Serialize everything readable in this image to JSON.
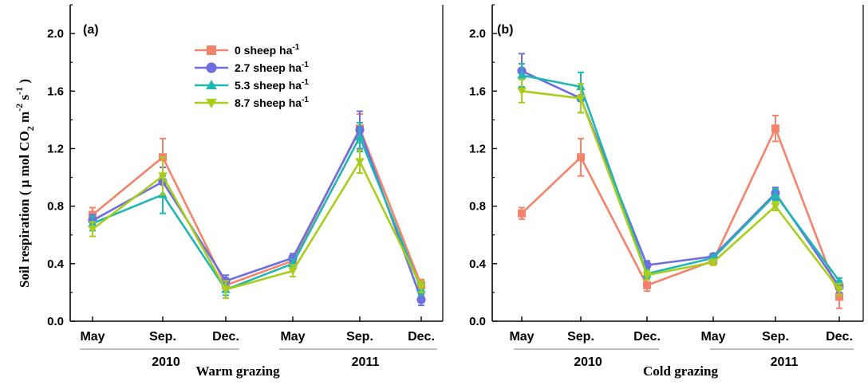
{
  "colors": {
    "s0": "#f5836b",
    "s27": "#6f6ee0",
    "s53": "#1fb7b3",
    "s87": "#a8cd1b",
    "axis": "#000000",
    "group_line": "#7f7f7f"
  },
  "legend": {
    "entries": [
      {
        "name": "0 sheep ha",
        "sup": "-1",
        "marker": "square"
      },
      {
        "name": "2.7 sheep ha",
        "sup": "-1",
        "marker": "circle"
      },
      {
        "name": "5.3  sheep ha",
        "sup": "-1",
        "marker": "triangle-up"
      },
      {
        "name": "8.7  sheep ha",
        "sup": "-1",
        "marker": "triangle-down"
      }
    ]
  },
  "ylabel": {
    "main": "Soil respiration ( μ mol CO",
    "sub2": "2",
    "m": " m",
    "sup2": "-2",
    "s": " s",
    "sup1": "-1",
    "close": " )"
  },
  "chart_data": [
    {
      "type": "line",
      "panel_label": "(a)",
      "xlabel": "Warm grazing",
      "categories": [
        "May",
        "Sep.",
        "Dec.",
        "May",
        "Sep.",
        "Dec."
      ],
      "year_groups": [
        {
          "label": "2010",
          "from": 0,
          "to": 2
        },
        {
          "label": "2011",
          "from": 3,
          "to": 5
        }
      ],
      "ylim": [
        0.0,
        2.2
      ],
      "yticks": [
        0.0,
        0.4,
        0.8,
        1.2,
        1.6,
        2.0
      ],
      "ytick_labels": [
        "0.0",
        "0.4",
        "0.8",
        "1.2",
        "1.6",
        "2.0"
      ],
      "legend_placement": "top-center",
      "series": [
        {
          "name": "0 sheep ha-1",
          "marker": "square",
          "values": [
            0.74,
            1.14,
            0.25,
            0.42,
            1.34,
            0.25
          ],
          "errors": [
            0.05,
            0.13,
            0.04,
            0.03,
            0.1,
            0.04
          ]
        },
        {
          "name": "2.7 sheep ha-1",
          "marker": "circle",
          "values": [
            0.7,
            0.97,
            0.28,
            0.44,
            1.33,
            0.15
          ],
          "errors": [
            0.04,
            0.1,
            0.04,
            0.03,
            0.13,
            0.04
          ]
        },
        {
          "name": "5.3  sheep ha-1",
          "marker": "triangle-up",
          "values": [
            0.68,
            0.88,
            0.22,
            0.4,
            1.28,
            0.22
          ],
          "errors": [
            0.05,
            0.13,
            0.04,
            0.03,
            0.1,
            0.04
          ]
        },
        {
          "name": "8.7  sheep ha-1",
          "marker": "triangle-down",
          "values": [
            0.64,
            1.01,
            0.22,
            0.35,
            1.11,
            0.24
          ],
          "errors": [
            0.05,
            0.13,
            0.06,
            0.04,
            0.08,
            0.04
          ]
        }
      ]
    },
    {
      "type": "line",
      "panel_label": "(b)",
      "xlabel": "Cold grazing",
      "categories": [
        "May",
        "Sep.",
        "Dec.",
        "May",
        "Sep.",
        "Dec."
      ],
      "year_groups": [
        {
          "label": "2010",
          "from": 0,
          "to": 2
        },
        {
          "label": "2011",
          "from": 3,
          "to": 5
        }
      ],
      "ylim": [
        0.0,
        2.2
      ],
      "yticks": [
        0.0,
        0.4,
        0.8,
        1.2,
        1.6,
        2.0
      ],
      "ytick_labels": [
        "0.0",
        "0.4",
        "0.8",
        "1.2",
        "1.6",
        "2.0"
      ],
      "series": [
        {
          "name": "0 sheep ha-1",
          "marker": "square",
          "values": [
            0.75,
            1.14,
            0.25,
            0.42,
            1.34,
            0.17
          ],
          "errors": [
            0.04,
            0.13,
            0.04,
            0.03,
            0.09,
            0.08
          ]
        },
        {
          "name": "2.7 sheep ha-1",
          "marker": "circle",
          "values": [
            1.74,
            1.55,
            0.39,
            0.45,
            0.89,
            0.24
          ],
          "errors": [
            0.12,
            0.1,
            0.03,
            0.02,
            0.04,
            0.04
          ]
        },
        {
          "name": "5.3  sheep ha-1",
          "marker": "triangle-up",
          "values": [
            1.71,
            1.63,
            0.33,
            0.44,
            0.88,
            0.28
          ],
          "errors": [
            0.08,
            0.1,
            0.03,
            0.02,
            0.04,
            0.02
          ]
        },
        {
          "name": "8.7  sheep ha-1",
          "marker": "triangle-down",
          "values": [
            1.6,
            1.55,
            0.32,
            0.41,
            0.8,
            0.22
          ],
          "errors": [
            0.08,
            0.1,
            0.03,
            0.02,
            0.03,
            0.04
          ]
        }
      ]
    }
  ]
}
